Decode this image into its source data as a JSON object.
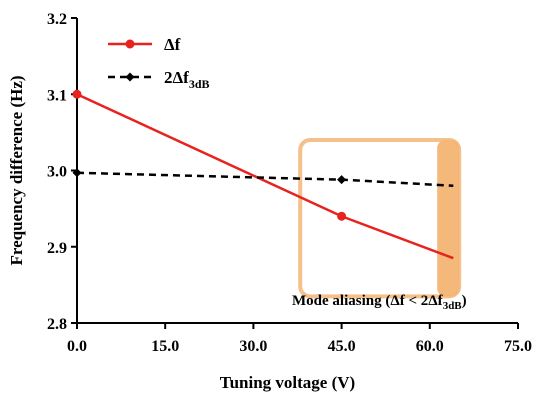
{
  "chart_data": {
    "type": "line",
    "xlabel": "Tuning voltage (V)",
    "ylabel": "Frequency difference (Hz)",
    "xlim": [
      0,
      75
    ],
    "ylim": [
      2.8,
      3.2
    ],
    "x_ticks": [
      0,
      15,
      30,
      45,
      60,
      75
    ],
    "x_tick_labels": [
      "0.0",
      "15.0",
      "30.0",
      "45.0",
      "60.0",
      "75.0"
    ],
    "y_ticks": [
      2.8,
      2.9,
      3.0,
      3.1,
      3.2
    ],
    "y_tick_labels": [
      "2.8",
      "2.9",
      "3.0",
      "3.1",
      "3.2"
    ],
    "grid": false,
    "legend_position": "top-left",
    "series": [
      {
        "name_main": "Δf",
        "name_sub": "",
        "color": "#e8231f",
        "marker": "circle",
        "line_style": "solid",
        "x": [
          0,
          45,
          64
        ],
        "y": [
          3.1,
          2.94,
          2.885
        ]
      },
      {
        "name_main": "2Δf",
        "name_sub": "3dB",
        "color": "#000000",
        "marker": "diamond",
        "line_style": "dashed",
        "x": [
          0,
          45,
          64
        ],
        "y": [
          2.997,
          2.988,
          2.98
        ]
      }
    ],
    "annotation": {
      "text_main": "Mode aliasing (Δf < 2Δf",
      "text_sub": "3dB",
      "text_end": ")",
      "region_x": [
        40,
        65
      ],
      "region_y": [
        2.835,
        3.04
      ],
      "border_color": "#f5c08a",
      "fill_color": "#f4b474"
    }
  }
}
